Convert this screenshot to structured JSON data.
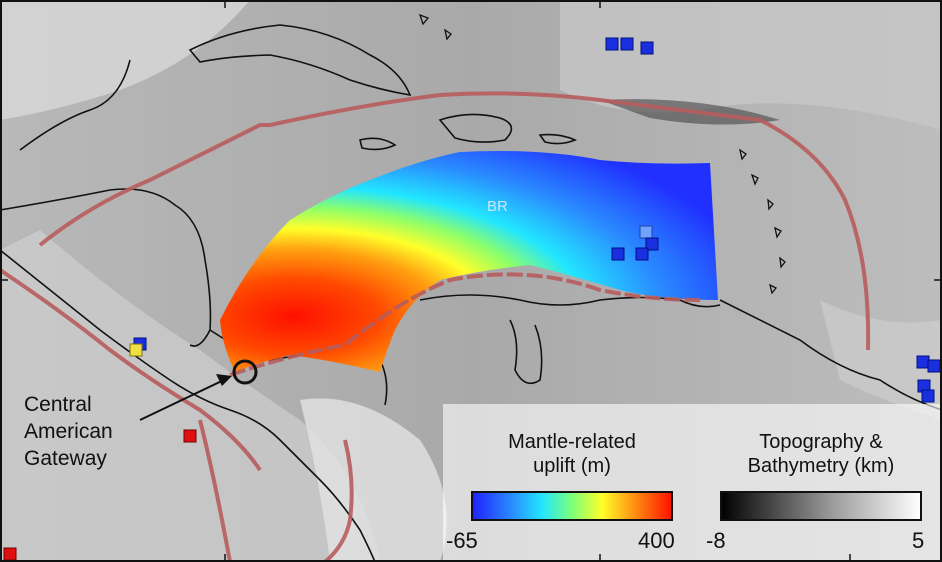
{
  "map": {
    "region_label": "BR",
    "callout": [
      "Central",
      "American",
      "Gateway"
    ],
    "colors": {
      "plate_boundary": "#b85c5c",
      "coastline": "#111111",
      "uplift_max": "#ff1a00",
      "uplift_min": "#1a33ff"
    },
    "station_markers": [
      {
        "color": "#1a2fe0",
        "where": "north of Hispaniola"
      },
      {
        "color": "#1a2fe0",
        "where": "Lesser Antilles arc"
      },
      {
        "color": "#6fa3ff",
        "where": "eastern Caribbean"
      },
      {
        "color": "#1a2fe0",
        "where": "Atlantic margin"
      },
      {
        "color": "#f0e040",
        "where": "Pacific coast of Central America"
      },
      {
        "color": "#e01010",
        "where": "Pacific"
      }
    ]
  },
  "legend_uplift": {
    "title_line1": "Mantle-related",
    "title_line2": "uplift (m)",
    "min": "-65",
    "max": "400",
    "colormap": "jet"
  },
  "legend_topo": {
    "title_line1": "Topography &",
    "title_line2": "Bathymetry (km)",
    "min": "-8",
    "max": "5",
    "colormap": "gray"
  }
}
